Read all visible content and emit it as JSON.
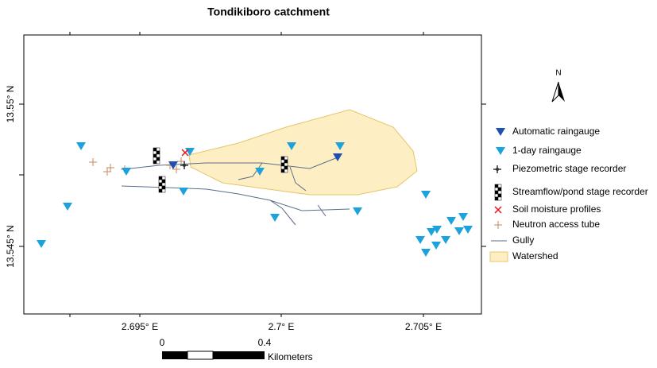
{
  "title": "Tondikiboro catchment",
  "x_axis": {
    "labels": [
      "2.695° E",
      "2.7° E",
      "2.705° E"
    ]
  },
  "y_axis": {
    "labels": [
      "13.55° N",
      "13.545° N"
    ]
  },
  "legend": {
    "items": [
      "Automatic raingauge",
      "1-day raingauge",
      "Piezometric stage recorder",
      "Streamflow/pond stage recorder",
      "Soil moisture profiles",
      "Neutron access tube",
      "Gully",
      "Watershed"
    ]
  },
  "north_arrow": {
    "label": "N"
  },
  "scale_bar": {
    "labels": [
      "0",
      "0.4"
    ],
    "unit": "Kilometers"
  }
}
